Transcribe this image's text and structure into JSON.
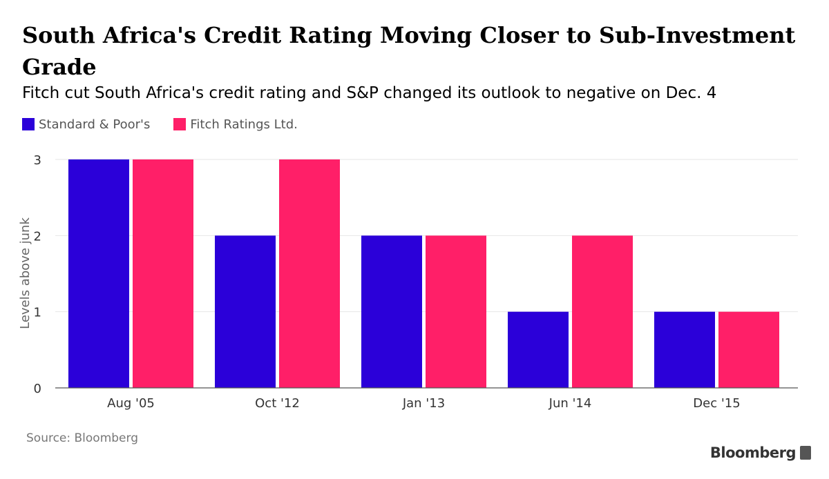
{
  "title": "South Africa's Credit Rating Moving Closer to Sub-Investment Grade",
  "subtitle": "Fitch cut South Africa's credit rating and S&P changed its outlook to negative on Dec. 4",
  "legend": [
    {
      "label": "Standard & Poor's",
      "color": "#2b00d9"
    },
    {
      "label": "Fitch Ratings Ltd.",
      "color": "#ff1f68"
    }
  ],
  "source": "Source: Bloomberg",
  "brand": "Bloomberg",
  "chart_data": {
    "type": "bar",
    "categories": [
      "Aug '05",
      "Oct '12",
      "Jan '13",
      "Jun '14",
      "Dec '15"
    ],
    "series": [
      {
        "name": "Standard & Poor's",
        "color": "#2b00d9",
        "values": [
          3,
          2,
          2,
          1,
          1
        ]
      },
      {
        "name": "Fitch Ratings Ltd.",
        "color": "#ff1f68",
        "values": [
          3,
          3,
          2,
          2,
          1
        ]
      }
    ],
    "ylabel": "Levels above junk",
    "xlabel": "",
    "ylim": [
      0,
      3
    ],
    "yticks": [
      "0",
      "1",
      "2",
      "3"
    ],
    "grid": true,
    "legend_position": "top-left"
  }
}
